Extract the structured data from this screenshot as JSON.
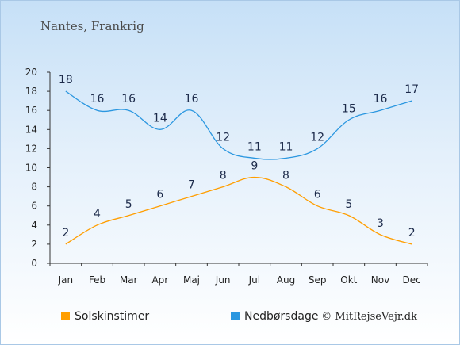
{
  "chart_data": {
    "type": "line",
    "title": "Nantes, Frankrig",
    "categories": [
      "Jan",
      "Feb",
      "Mar",
      "Apr",
      "Maj",
      "Jun",
      "Jul",
      "Aug",
      "Sep",
      "Okt",
      "Nov",
      "Dec"
    ],
    "ylim": [
      0,
      20
    ],
    "yticks": [
      0,
      2,
      4,
      6,
      8,
      10,
      12,
      14,
      16,
      18,
      20
    ],
    "grid": false,
    "legend_position": "bottom-left",
    "series": [
      {
        "name": "Solskinstimer",
        "color": "#ff9e00",
        "values": [
          2,
          4,
          5,
          6,
          7,
          8,
          9,
          8,
          6,
          5,
          3,
          2
        ]
      },
      {
        "name": "Nedbørsdage",
        "color": "#2b97e0",
        "values": [
          18,
          16,
          16,
          14,
          16,
          12,
          11,
          11,
          12,
          15,
          16,
          17
        ]
      }
    ]
  },
  "credit": "© MitRejseVejr.dk"
}
